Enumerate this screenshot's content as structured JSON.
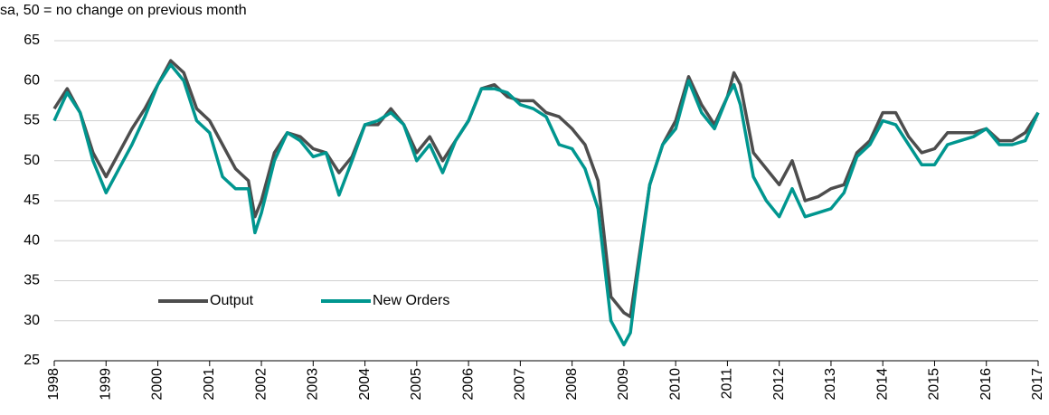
{
  "chart_data": {
    "type": "line",
    "subtitle": "sa, 50 = no change on previous month",
    "x": [
      1998.0,
      1998.25,
      1998.5,
      1998.75,
      1999.0,
      1999.25,
      1999.5,
      1999.75,
      2000.0,
      2000.25,
      2000.5,
      2000.75,
      2001.0,
      2001.25,
      2001.5,
      2001.75,
      2001.875,
      2002.0,
      2002.25,
      2002.5,
      2002.75,
      2003.0,
      2003.25,
      2003.5,
      2003.75,
      2004.0,
      2004.25,
      2004.5,
      2004.75,
      2005.0,
      2005.25,
      2005.5,
      2005.75,
      2006.0,
      2006.25,
      2006.5,
      2006.75,
      2007.0,
      2007.25,
      2007.5,
      2007.75,
      2008.0,
      2008.25,
      2008.5,
      2008.75,
      2009.0,
      2009.125,
      2009.25,
      2009.5,
      2009.75,
      2010.0,
      2010.25,
      2010.5,
      2010.75,
      2011.0,
      2011.125,
      2011.25,
      2011.5,
      2011.75,
      2012.0,
      2012.25,
      2012.5,
      2012.75,
      2013.0,
      2013.25,
      2013.5,
      2013.75,
      2014.0,
      2014.25,
      2014.5,
      2014.75,
      2015.0,
      2015.25,
      2015.5,
      2015.75,
      2016.0,
      2016.25,
      2016.5,
      2016.75,
      2017.0
    ],
    "series": [
      {
        "name": "Output",
        "color": "#4d4d4d",
        "values": [
          56.5,
          59,
          56,
          51,
          48,
          51,
          54,
          56.5,
          59.5,
          62.5,
          61,
          56.5,
          55,
          52,
          49,
          47.5,
          43,
          45,
          51,
          53.5,
          53,
          51.5,
          51,
          48.5,
          50.5,
          54.5,
          54.5,
          56.5,
          54.5,
          51,
          53,
          50,
          52.5,
          55,
          59,
          59.5,
          58,
          57.5,
          57.5,
          56,
          55.5,
          54,
          52,
          47.5,
          33,
          31,
          30.5,
          36,
          47,
          52,
          55,
          60.5,
          57,
          54.5,
          58,
          61,
          59.5,
          51,
          49,
          47,
          50,
          45,
          45.5,
          46.5,
          47,
          51,
          52.5,
          56,
          56,
          53,
          51,
          51.5,
          53.5,
          53.5,
          53.5,
          54,
          52.5,
          52.5,
          53.5,
          56
        ]
      },
      {
        "name": "New Orders",
        "color": "#00968f",
        "values": [
          55,
          58.5,
          56,
          50,
          46,
          49,
          52,
          55.5,
          59.5,
          62,
          60,
          55,
          53.5,
          48,
          46.5,
          46.5,
          41,
          43.5,
          50,
          53.5,
          52.5,
          50.5,
          51,
          45.7,
          50,
          54.5,
          55,
          56,
          54.5,
          50,
          52,
          48.5,
          52.5,
          55,
          59,
          59,
          58.5,
          57,
          56.5,
          55.5,
          52,
          51.5,
          49,
          44,
          30,
          27,
          28.5,
          35,
          47,
          52,
          54,
          60,
          56,
          54,
          58,
          59.5,
          57,
          48,
          45,
          43,
          46.5,
          43,
          43.5,
          44,
          46,
          50.5,
          52,
          55,
          54.5,
          52,
          49.5,
          49.5,
          52,
          52.5,
          53,
          54,
          52,
          52,
          52.5,
          56
        ]
      }
    ],
    "xlim": [
      1998,
      2017
    ],
    "xticks": [
      1998,
      1999,
      2000,
      2001,
      2002,
      2003,
      2004,
      2005,
      2006,
      2007,
      2008,
      2009,
      2010,
      2011,
      2012,
      2013,
      2014,
      2015,
      2016,
      2017
    ],
    "ylim": [
      25,
      65
    ],
    "yticks": [
      25,
      30,
      35,
      40,
      45,
      50,
      55,
      60,
      65
    ],
    "grid": true,
    "legend": "lower left"
  }
}
